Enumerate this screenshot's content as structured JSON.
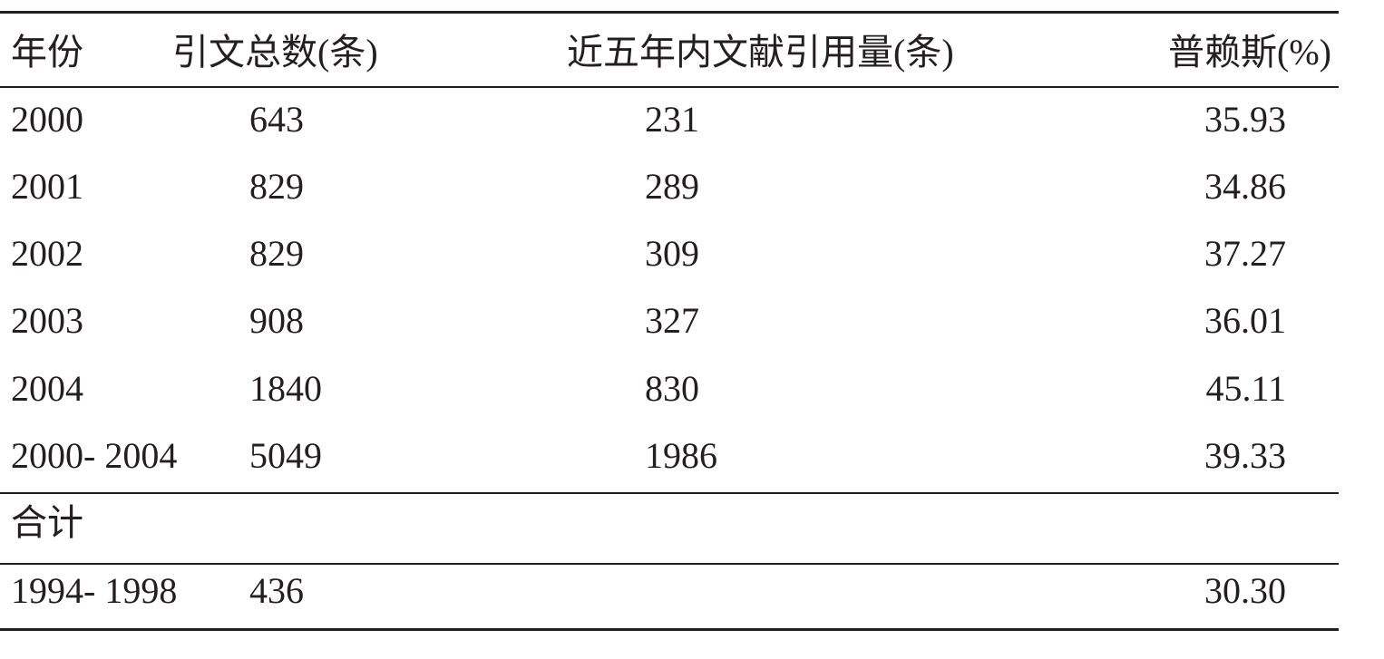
{
  "table": {
    "header": [
      "年份",
      "引文总数(条)",
      "近五年内文献引用量(条)",
      "普赖斯(%)"
    ],
    "rows": [
      [
        "2000",
        "643",
        "231",
        "35.93"
      ],
      [
        "2001",
        "829",
        "289",
        "34.86"
      ],
      [
        "2002",
        "829",
        "309",
        "37.27"
      ],
      [
        "2003",
        "908",
        "327",
        "36.01"
      ],
      [
        "2004",
        "1840",
        "830",
        "45.11"
      ],
      [
        "2000- 2004",
        "5049",
        "1986",
        "39.33"
      ],
      [
        "合计",
        null,
        null,
        null
      ],
      [
        "1994- 1998",
        "436",
        null,
        "30.30"
      ]
    ]
  }
}
